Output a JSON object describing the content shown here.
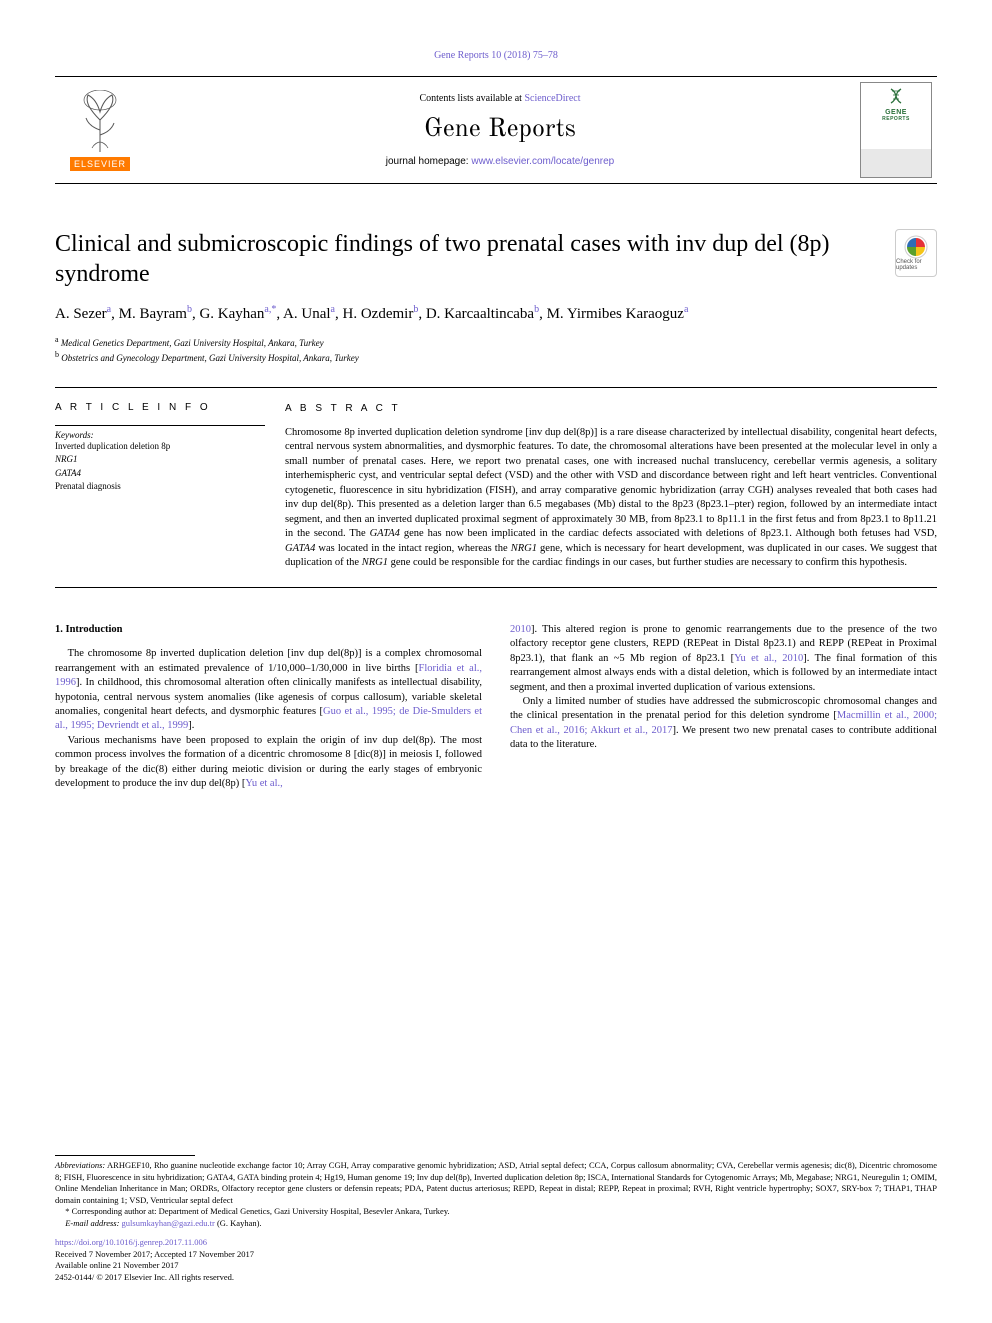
{
  "top_ref": "Gene Reports 10 (2018) 75–78",
  "header": {
    "contents_prefix": "Contents lists available at ",
    "contents_link": "ScienceDirect",
    "journal_name": "Gene Reports",
    "homepage_prefix": "journal homepage: ",
    "homepage_url": "www.elsevier.com/locate/genrep",
    "elsevier_word": "ELSEVIER",
    "cover_gene": "GENE",
    "cover_reports": "REPORTS"
  },
  "title": "Clinical and submicroscopic findings of two prenatal cases with inv dup del (8p) syndrome",
  "crossmark_text": "Check for updates",
  "authors_html": "A. Sezer|a|, M. Bayram|b|, G. Kayhan|a,*|, A. Unal|a|, H. Ozdemir|b|, D. Karcaaltincaba|b|, M. Yirmibes Karaoguz|a|",
  "affiliations": [
    {
      "mark": "a",
      "text": "Medical Genetics Department, Gazi University Hospital, Ankara, Turkey"
    },
    {
      "mark": "b",
      "text": "Obstetrics and Gynecology Department, Gazi University Hospital, Ankara, Turkey"
    }
  ],
  "article_info_head": "A R T I C L E  I N F O",
  "abstract_head": "A B S T R A C T",
  "keywords_label": "Keywords:",
  "keywords": [
    "Inverted duplication deletion 8p",
    "NRG1",
    "GATA4",
    "Prenatal diagnosis"
  ],
  "abstract": "Chromosome 8p inverted duplication deletion syndrome [inv dup del(8p)] is a rare disease characterized by intellectual disability, congenital heart defects, central nervous system abnormalities, and dysmorphic features. To date, the chromosomal alterations have been presented at the molecular level in only a small number of prenatal cases. Here, we report two prenatal cases, one with increased nuchal translucency, cerebellar vermis agenesis, a solitary interhemispheric cyst, and ventricular septal defect (VSD) and the other with VSD and discordance between right and left heart ventricles. Conventional cytogenetic, fluorescence in situ hybridization (FISH), and array comparative genomic hybridization (array CGH) analyses revealed that both cases had inv dup del(8p). This presented as a deletion larger than 6.5 megabases (Mb) distal to the 8p23 (8p23.1–pter) region, followed by an intermediate intact segment, and then an inverted duplicated proximal segment of approximately 30 MB, from 8p23.1 to 8p11.1 in the first fetus and from 8p23.1 to 8p11.21 in the second. The GATA4 gene has now been implicated in the cardiac defects associated with deletions of 8p23.1. Although both fetuses had VSD, GATA4 was located in the intact region, whereas the NRG1 gene, which is necessary for heart development, was duplicated in our cases. We suggest that duplication of the NRG1 gene could be responsible for the cardiac findings in our cases, but further studies are necessary to confirm this hypothesis.",
  "section1_head": "1. Introduction",
  "col1_p1": "The chromosome 8p inverted duplication deletion [inv dup del(8p)] is a complex chromosomal rearrangement with an estimated prevalence of 1/10,000–1/30,000 in live births [",
  "col1_p1_ref1": "Floridia et al., 1996",
  "col1_p1_b": "]. In childhood, this chromosomal alteration often clinically manifests as intellectual disability, hypotonia, central nervous system anomalies (like agenesis of corpus callosum), variable skeletal anomalies, congenital heart defects, and dysmorphic features [",
  "col1_p1_ref2": "Guo et al., 1995; de Die-Smulders et al., 1995; Devriendt et al., 1999",
  "col1_p1_c": "].",
  "col1_p2": "Various mechanisms have been proposed to explain the origin of inv dup del(8p). The most common process involves the formation of a dicentric chromosome 8 [dic(8)] in meiosis I, followed by breakage of the dic(8) either during meiotic division or during the early stages of embryonic development to produce the inv dup del(8p) [",
  "col1_p2_ref": "Yu et al.,",
  "col2_p1_ref": "2010",
  "col2_p1": "]. This altered region is prone to genomic rearrangements due to the presence of the two olfactory receptor gene clusters, REPD (REPeat in Distal 8p23.1) and REPP (REPeat in Proximal 8p23.1), that flank an ~5 Mb region of 8p23.1 [",
  "col2_p1_ref2": "Yu et al., 2010",
  "col2_p1_b": "]. The final formation of this rearrangement almost always ends with a distal deletion, which is followed by an intermediate intact segment, and then a proximal inverted duplication of various extensions.",
  "col2_p2": "Only a limited number of studies have addressed the submicroscopic chromosomal changes and the clinical presentation in the prenatal period for this deletion syndrome [",
  "col2_p2_ref": "Macmillin et al., 2000; Chen et al., 2016; Akkurt et al., 2017",
  "col2_p2_b": "]. We present two new prenatal cases to contribute additional data to the literature.",
  "footer": {
    "abbrev_label": "Abbreviations:",
    "abbrev_text": " ARHGEF10, Rho guanine nucleotide exchange factor 10; Array CGH, Array comparative genomic hybridization; ASD, Atrial septal defect; CCA, Corpus callosum abnormality; CVA, Cerebellar vermis agenesis; dic(8), Dicentric chromosome 8; FISH, Fluorescence in situ hybridization; GATA4, GATA binding protein 4; Hg19, Human genome 19; Inv dup del(8p), Inverted duplication deletion 8p; ISCA, International Standards for Cytogenomic Arrays; Mb, Megabase; NRG1, Neuregulin 1; OMIM, Online Mendelian Inheritance in Man; ORDRs, Olfactory receptor gene clusters or defensin repeats; PDA, Patent ductus arteriosus; REPD, Repeat in distal; REPP, Repeat in proximal; RVH, Right ventricle hypertrophy; SOX7, SRY-box 7; THAP1, THAP domain containing 1; VSD, Ventricular septal defect",
    "corresp_mark": "*",
    "corresp_text": " Corresponding author at: Department of Medical Genetics, Gazi University Hospital, Besevler Ankara, Turkey.",
    "email_label": "E-mail address:",
    "email": "gulsumkayhan@gazi.edu.tr",
    "email_name": " (G. Kayhan).",
    "doi": "https://doi.org/10.1016/j.genrep.2017.11.006",
    "received": "Received 7 November 2017; Accepted 17 November 2017",
    "online": "Available online 21 November 2017",
    "copyright": "2452-0144/ © 2017 Elsevier Inc. All rights reserved."
  },
  "colors": {
    "link": "#6d5dcd",
    "elsevier_orange": "#ff7a00",
    "crossmark_red": "#e53238",
    "crossmark_blue": "#2e6db5",
    "crossmark_yellow": "#f5c518",
    "crossmark_green": "#5aa02c"
  }
}
